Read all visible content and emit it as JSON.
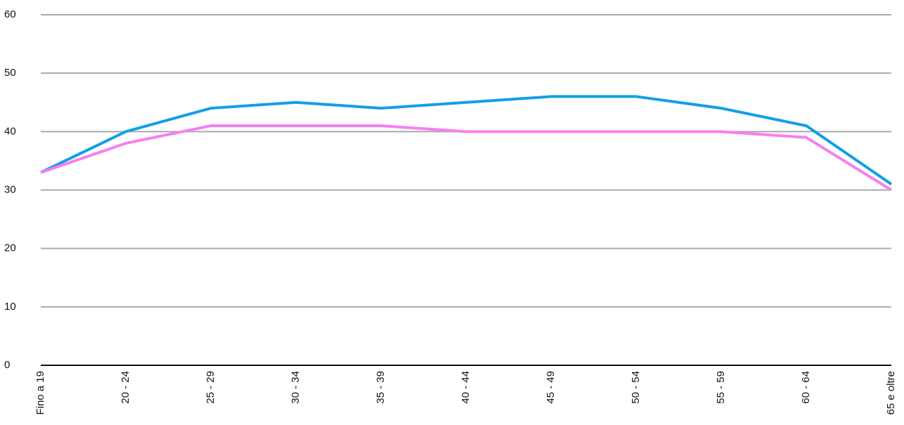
{
  "chart_data": {
    "type": "line",
    "categories": [
      "Fino a 19",
      "20 - 24",
      "25 - 29",
      "30 - 34",
      "35 - 39",
      "40 - 44",
      "45 - 49",
      "50 - 54",
      "55 - 59",
      "60 - 64",
      "65 e oltre"
    ],
    "series": [
      {
        "color": "#129fe6",
        "values": [
          33,
          40,
          44,
          45,
          44,
          45,
          46,
          46,
          44,
          41,
          31
        ]
      },
      {
        "color": "#f77ef3",
        "values": [
          33,
          38,
          41,
          41,
          41,
          40,
          40,
          40,
          40,
          39,
          30
        ]
      }
    ],
    "ylim": [
      0,
      60
    ],
    "yticks": [
      0,
      10,
      20,
      30,
      40,
      50,
      60
    ],
    "grid": true
  }
}
